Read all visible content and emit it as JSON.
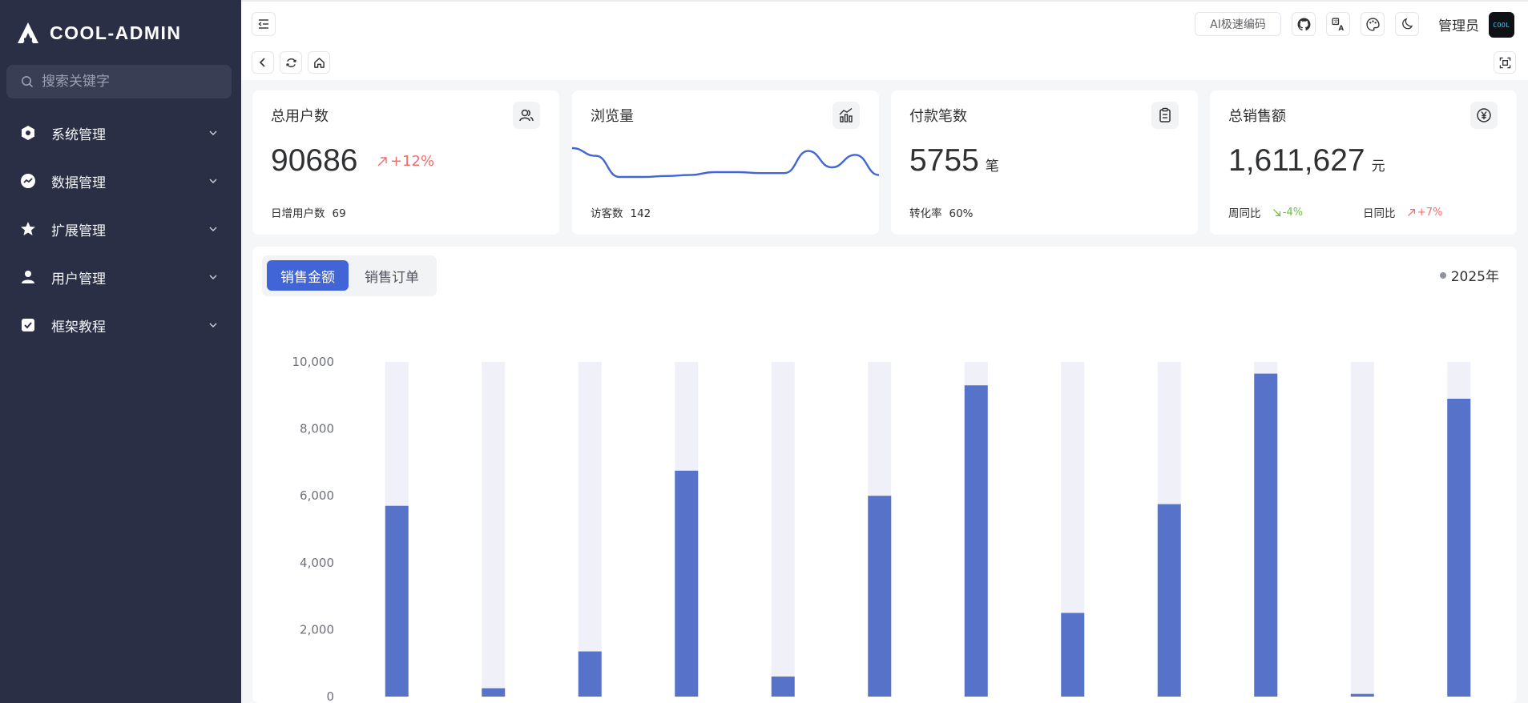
{
  "app": {
    "name": "COOL-ADMIN"
  },
  "sidebar": {
    "search_placeholder": "搜索关键字",
    "items": [
      {
        "label": "系统管理",
        "icon": "hexagon-icon"
      },
      {
        "label": "数据管理",
        "icon": "chart-circle-icon"
      },
      {
        "label": "扩展管理",
        "icon": "star-icon"
      },
      {
        "label": "用户管理",
        "icon": "user-icon"
      },
      {
        "label": "框架教程",
        "icon": "checklist-icon"
      }
    ]
  },
  "header": {
    "ai_button": "AI极速编码",
    "user_name": "管理员",
    "avatar_text": "COOL"
  },
  "cards": {
    "users": {
      "title": "总用户数",
      "value": "90686",
      "trend": "+12%",
      "foot_label": "日增用户数",
      "foot_value": "69"
    },
    "views": {
      "title": "浏览量",
      "foot_label": "访客数",
      "foot_value": "142"
    },
    "payments": {
      "title": "付款笔数",
      "value": "5755",
      "unit": "笔",
      "foot_label": "转化率",
      "foot_value": "60%"
    },
    "sales": {
      "title": "总销售额",
      "value": "1,611,627",
      "unit": "元",
      "week_label": "周同比",
      "week_trend": "-4%",
      "day_label": "日同比",
      "day_trend": "+7%"
    }
  },
  "panel": {
    "tabs": [
      "销售金额",
      "销售订单"
    ],
    "year": "2025年"
  },
  "colors": {
    "accent": "#4165d7",
    "sidebar_bg": "#2b2f45",
    "bar": "#5673c9",
    "bar_bg": "#eff0f8",
    "up": "#f56c6c",
    "down": "#67c23a"
  },
  "chart_data": [
    {
      "type": "bar",
      "series": [
        {
          "values": [
            5700,
            250,
            1350,
            6750,
            600,
            6000,
            9300,
            2500,
            5750,
            9650,
            80,
            8900
          ]
        }
      ],
      "background_max": 10000,
      "yticks": [
        "10,000",
        "8,000",
        "6,000",
        "4,000",
        "2,000",
        "0"
      ],
      "ylim": [
        0,
        10000
      ]
    },
    {
      "type": "line",
      "series": [
        {
          "values": [
            80,
            72,
            50,
            50,
            51,
            52,
            55,
            55,
            54,
            54,
            77,
            60,
            73,
            52
          ]
        }
      ]
    }
  ]
}
